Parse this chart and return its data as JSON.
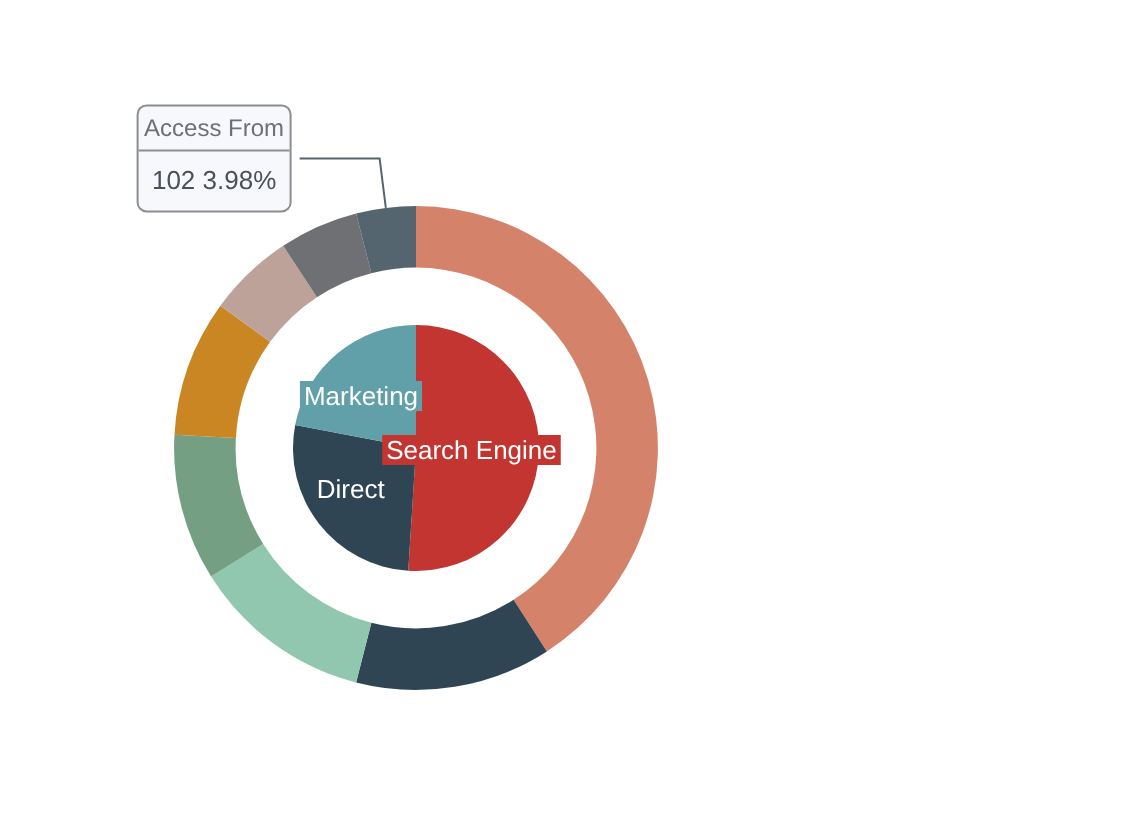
{
  "chart_data": [
    {
      "type": "pie",
      "categories": [
        "Search Engine",
        "Direct",
        "Marketing"
      ],
      "values": [
        51,
        27,
        22
      ],
      "colors": [
        "#c23531",
        "#2f4554",
        "#61a0a8"
      ]
    },
    {
      "type": "donut",
      "categories": [
        null,
        null,
        null,
        null,
        null,
        null,
        null,
        null
      ],
      "series": [
        {
          "name": "Access From",
          "values": [
            40.9,
            13.08,
            12.1,
            9.8,
            9.13,
            5.74,
            5.27,
            3.98
          ],
          "colors": [
            "#d4826a",
            "#2f4554",
            "#91c7ae",
            "#749f83",
            "#ca8622",
            "#bda29a",
            "#6e7074",
            "#546570"
          ],
          "value_labels": [
            null,
            null,
            null,
            null,
            null,
            null,
            null,
            "102 3.98%"
          ]
        }
      ]
    }
  ]
}
